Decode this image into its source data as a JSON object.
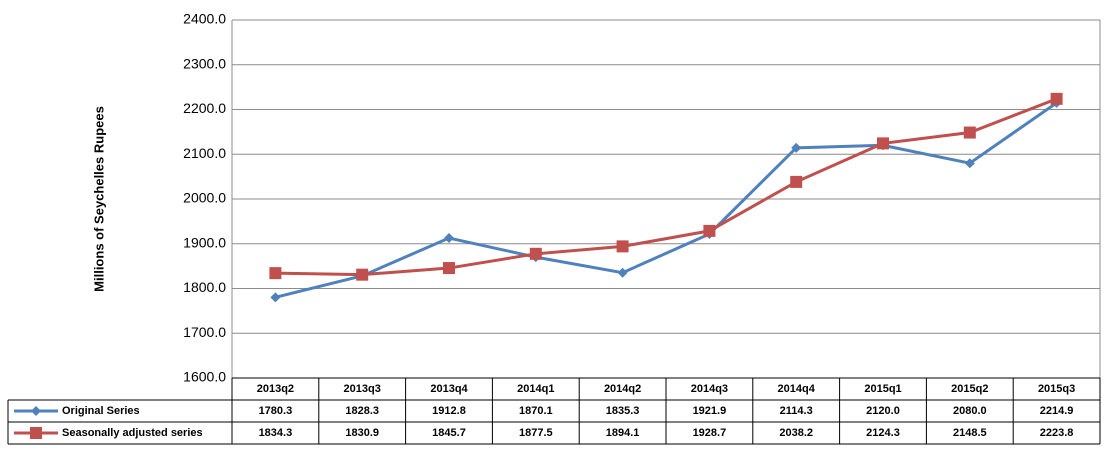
{
  "chart_data": {
    "type": "line",
    "ylabel": "Millions of Seychelles Rupees",
    "categories": [
      "2013q2",
      "2013q3",
      "2013q4",
      "2014q1",
      "2014q2",
      "2014q3",
      "2014q4",
      "2015q1",
      "2015q2",
      "2015q3"
    ],
    "series": [
      {
        "name": "Original Series",
        "color": "#4f81bd",
        "marker": "diamond",
        "values": [
          1780.3,
          1828.3,
          1912.8,
          1870.1,
          1835.3,
          1921.9,
          2114.3,
          2120.0,
          2080.0,
          2214.9
        ],
        "value_labels": [
          "1780.3",
          "1828.3",
          "1912.8",
          "1870.1",
          "1835.3",
          "1921.9",
          "2114.3",
          "2120.0",
          "2080.0",
          "2214.9"
        ]
      },
      {
        "name": "Seasonally adjusted series",
        "color": "#c0504d",
        "marker": "square",
        "values": [
          1834.3,
          1830.9,
          1845.7,
          1877.5,
          1894.1,
          1928.7,
          2038.2,
          2124.3,
          2148.5,
          2223.8
        ],
        "value_labels": [
          "1834.3",
          "1830.9",
          "1845.7",
          "1877.5",
          "1894.1",
          "1928.7",
          "2038.2",
          "2124.3",
          "2148.5",
          "2223.8"
        ]
      }
    ],
    "ylim": [
      1600,
      2400
    ],
    "yticks": [
      {
        "value": 1600,
        "label": "1600.0"
      },
      {
        "value": 1700,
        "label": "1700.0"
      },
      {
        "value": 1800,
        "label": "1800.0"
      },
      {
        "value": 1900,
        "label": "1900.0"
      },
      {
        "value": 2000,
        "label": "2000.0"
      },
      {
        "value": 2100,
        "label": "2100.0"
      },
      {
        "value": 2200,
        "label": "2200.0"
      },
      {
        "value": 2300,
        "label": "2300.0"
      },
      {
        "value": 2400,
        "label": "2400.0"
      }
    ],
    "grid": true
  }
}
